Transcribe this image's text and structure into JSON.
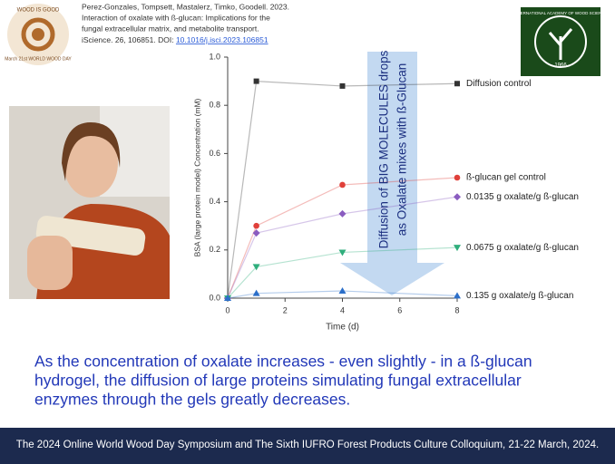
{
  "header": {
    "badge": [
      "WOOD IS GOOD",
      "March 21st WORLD WOOD DAY"
    ],
    "citation": [
      "Perez-Gonzales, Tompsett, Mastalerz, Timko, Goodell. 2023.",
      "Interaction of oxalate with ß-glucan: Implications for the",
      "fungal extracellular matrix, and metabolite transport.",
      "iScience. 26, 106851. DOI: "
    ],
    "doi": "10.1016/j.isci.2023.106851",
    "logo": [
      "INTERNATIONAL ACADEMY OF WOOD SCIENCE",
      "1966"
    ]
  },
  "chart_data": {
    "type": "line",
    "x": [
      0,
      1,
      4,
      8
    ],
    "xlabel": "Time (d)",
    "ylabel": "BSA (large protein model) Concentration (mM)",
    "xlim": [
      0,
      8
    ],
    "xticks": [
      0,
      2,
      4,
      6,
      8
    ],
    "ylim": [
      0,
      1
    ],
    "yticks": [
      {
        "value": 0,
        "label": "0.0"
      },
      0.2,
      0.4,
      0.6,
      0.8,
      {
        "value": 1,
        "label": "1.0"
      }
    ],
    "annotation": [
      "Diffusion of BIG MOLECULES drops",
      "as Oxalate mixes with ß-Glucan"
    ],
    "series": [
      {
        "name": "Diffusion control",
        "color": "#333333",
        "marker": "square",
        "values": [
          0,
          0.9,
          0.88,
          0.89
        ]
      },
      {
        "name": "ß-glucan gel control",
        "color": "#e0403a",
        "marker": "circle",
        "values": [
          0,
          0.3,
          0.47,
          0.5
        ]
      },
      {
        "name": "0.0135 g oxalate/g ß-glucan",
        "color": "#8a5cc0",
        "marker": "diamond",
        "values": [
          0,
          0.27,
          0.35,
          0.42
        ]
      },
      {
        "name": "0.0675 g oxalate/g ß-glucan",
        "color": "#2fae7c",
        "marker": "triangle-down",
        "values": [
          0,
          0.13,
          0.19,
          0.21
        ]
      },
      {
        "name": "0.135 g oxalate/g ß-glucan",
        "color": "#2c6fc9",
        "marker": "triangle-up",
        "values": [
          0,
          0.02,
          0.03,
          0.01
        ]
      }
    ]
  },
  "caption": [
    "As the concentration of oxalate increases - even slightly - in a ß-glucan",
    "hydrogel, the diffusion of large proteins simulating fungal extracellular",
    "enzymes through the gels greatly decreases."
  ],
  "footer": "The 2024 Online World Wood Day Symposium and The Sixth IUFRO Forest Products Culture Colloquium, 21-22 March, 2024."
}
